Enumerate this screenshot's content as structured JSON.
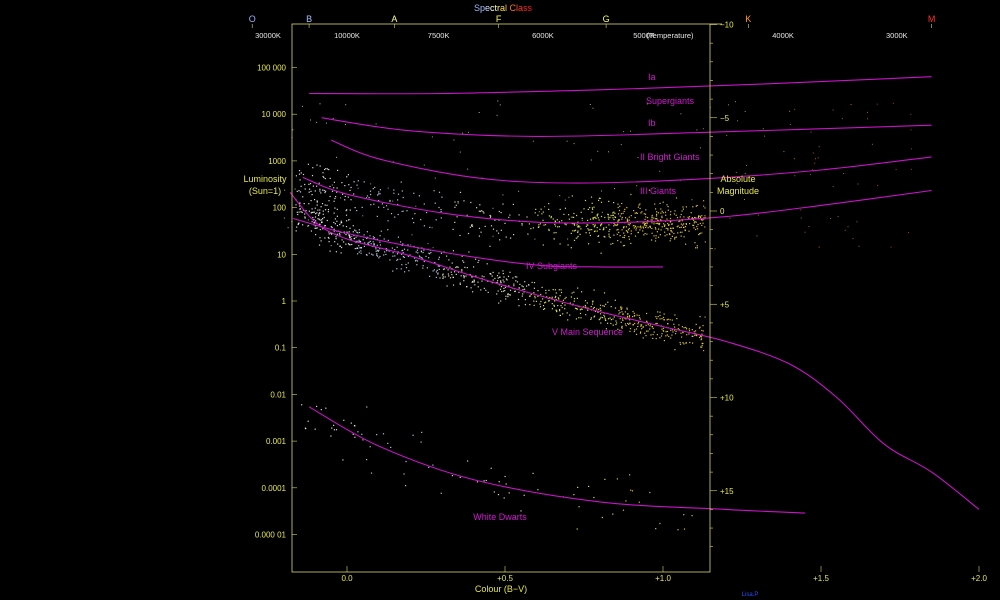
{
  "chart_data": {
    "type": "scatter",
    "spectral_title": "Spectral Class",
    "spectral_classes": [
      {
        "letter": "O",
        "bv": -0.3,
        "color": "#9bb0ff"
      },
      {
        "letter": "B",
        "bv": -0.12,
        "color": "#aabfff"
      },
      {
        "letter": "A",
        "bv": 0.15,
        "color": "#ffff90"
      },
      {
        "letter": "F",
        "bv": 0.48,
        "color": "#ffff60"
      },
      {
        "letter": "G",
        "bv": 0.82,
        "color": "#ffff40"
      },
      {
        "letter": "K",
        "bv": 1.27,
        "color": "#ff9a30"
      },
      {
        "letter": "M",
        "bv": 1.85,
        "color": "#ff3030"
      }
    ],
    "temperature_ticks": [
      {
        "label": "30000K",
        "bv": -0.25
      },
      {
        "label": "10000K",
        "bv": 0.0
      },
      {
        "label": "7500K",
        "bv": 0.29
      },
      {
        "label": "6000K",
        "bv": 0.62
      },
      {
        "label": "5000K",
        "bv": 0.94
      },
      {
        "label": "4000K",
        "bv": 1.38
      },
      {
        "label": "3000K",
        "bv": 1.74
      }
    ],
    "temperature_label": "(Temperature)",
    "xlabel": "Colour (B−V)",
    "x_ticks": [
      {
        "label": "0.0",
        "value": 0.0
      },
      {
        "label": "+0.5",
        "value": 0.5
      },
      {
        "label": "+1.0",
        "value": 1.0
      },
      {
        "label": "+1.5",
        "value": 1.5
      },
      {
        "label": "+2.0",
        "value": 2.0
      }
    ],
    "xlim": [
      -0.34,
      2.32
    ],
    "ylabel_left": [
      "Luminosity",
      "(Sun=1)"
    ],
    "ylabel_right": [
      "Absolute",
      "Magnitude"
    ],
    "left_ticks": [
      {
        "label": "100 000",
        "lum_exp": 5
      },
      {
        "label": "10 000",
        "lum_exp": 4
      },
      {
        "label": "1000",
        "lum_exp": 3
      },
      {
        "label": "100",
        "lum_exp": 2
      },
      {
        "label": "10",
        "lum_exp": 1
      },
      {
        "label": "1",
        "lum_exp": 0
      },
      {
        "label": "0.1",
        "lum_exp": -1
      },
      {
        "label": "0.01",
        "lum_exp": -2
      },
      {
        "label": "0.001",
        "lum_exp": -3
      },
      {
        "label": "0.0001",
        "lum_exp": -4
      },
      {
        "label": "0.000 01",
        "lum_exp": -5
      }
    ],
    "right_ticks": [
      {
        "label": "−10",
        "mag": -10
      },
      {
        "label": "−5",
        "mag": -5
      },
      {
        "label": "0",
        "mag": 0
      },
      {
        "label": "+5",
        "mag": 5
      },
      {
        "label": "+10",
        "mag": 10
      },
      {
        "label": "+15",
        "mag": 15
      }
    ],
    "magnitude_range": [
      -10,
      18.7
    ],
    "sequences": [
      {
        "label": "Ia",
        "points": [
          [
            -0.12,
            -6.3
          ],
          [
            0.3,
            -6.3
          ],
          [
            0.8,
            -6.5
          ],
          [
            1.3,
            -6.8
          ],
          [
            1.85,
            -7.2
          ]
        ]
      },
      {
        "label": "Supergiants",
        "points": []
      },
      {
        "label": "Ib",
        "points": [
          [
            -0.08,
            -5.0
          ],
          [
            0.2,
            -4.3
          ],
          [
            0.6,
            -4.0
          ],
          [
            1.1,
            -4.2
          ],
          [
            1.85,
            -4.6
          ]
        ]
      },
      {
        "label": "II  Bright Giants",
        "points": [
          [
            -0.05,
            -3.8
          ],
          [
            0.1,
            -2.8
          ],
          [
            0.4,
            -1.8
          ],
          [
            0.7,
            -1.5
          ],
          [
            1.1,
            -1.7
          ],
          [
            1.5,
            -2.2
          ],
          [
            1.85,
            -2.9
          ]
        ]
      },
      {
        "label": "III     Giants",
        "points": [
          [
            -0.14,
            -1.8
          ],
          [
            0.0,
            -0.9
          ],
          [
            0.3,
            0.1
          ],
          [
            0.6,
            0.6
          ],
          [
            0.9,
            0.6
          ],
          [
            1.2,
            0.3
          ],
          [
            1.5,
            -0.3
          ],
          [
            1.85,
            -1.1
          ]
        ]
      },
      {
        "label": "IV  Subgiants",
        "points": [
          [
            -0.17,
            0.4
          ],
          [
            0.0,
            1.2
          ],
          [
            0.3,
            2.2
          ],
          [
            0.6,
            2.9
          ],
          [
            0.8,
            3.0
          ],
          [
            1.0,
            3.0
          ]
        ]
      },
      {
        "label": "V  Main Sequence",
        "points": [
          [
            -0.18,
            -1.0
          ],
          [
            -0.1,
            0.6
          ],
          [
            0.0,
            1.5
          ],
          [
            0.2,
            2.4
          ],
          [
            0.4,
            3.5
          ],
          [
            0.6,
            4.5
          ],
          [
            0.8,
            5.4
          ],
          [
            1.0,
            6.2
          ],
          [
            1.2,
            7.0
          ],
          [
            1.4,
            8.2
          ],
          [
            1.55,
            10.0
          ],
          [
            1.7,
            12.5
          ],
          [
            1.85,
            14.0
          ],
          [
            2.0,
            16.0
          ]
        ]
      },
      {
        "label": "White Dwarts",
        "points": [
          [
            -0.12,
            10.5
          ],
          [
            0.1,
            12.6
          ],
          [
            0.4,
            14.4
          ],
          [
            0.8,
            15.6
          ],
          [
            1.2,
            16.0
          ],
          [
            1.45,
            16.2
          ]
        ]
      }
    ],
    "star_clusters": [
      {
        "name": "main sequence",
        "along": "V  Main Sequence",
        "spread": 0.35
      },
      {
        "name": "red clump",
        "center": [
          1.0,
          0.7
        ],
        "spread": [
          0.18,
          0.55
        ]
      },
      {
        "name": "giant branch",
        "along": "III     Giants",
        "spread": 0.6
      },
      {
        "name": "white dwarfs",
        "along": "White Dwarts",
        "spread": 0.7
      }
    ],
    "point_colors": [
      "#ffffff",
      "#cfe4ff",
      "#fffbd0",
      "#ffff60",
      "#ffe040",
      "#ffb040",
      "#ff7a30",
      "#ff4a3a"
    ],
    "grid": false,
    "legend": "none",
    "credit": "Lisa.P"
  }
}
